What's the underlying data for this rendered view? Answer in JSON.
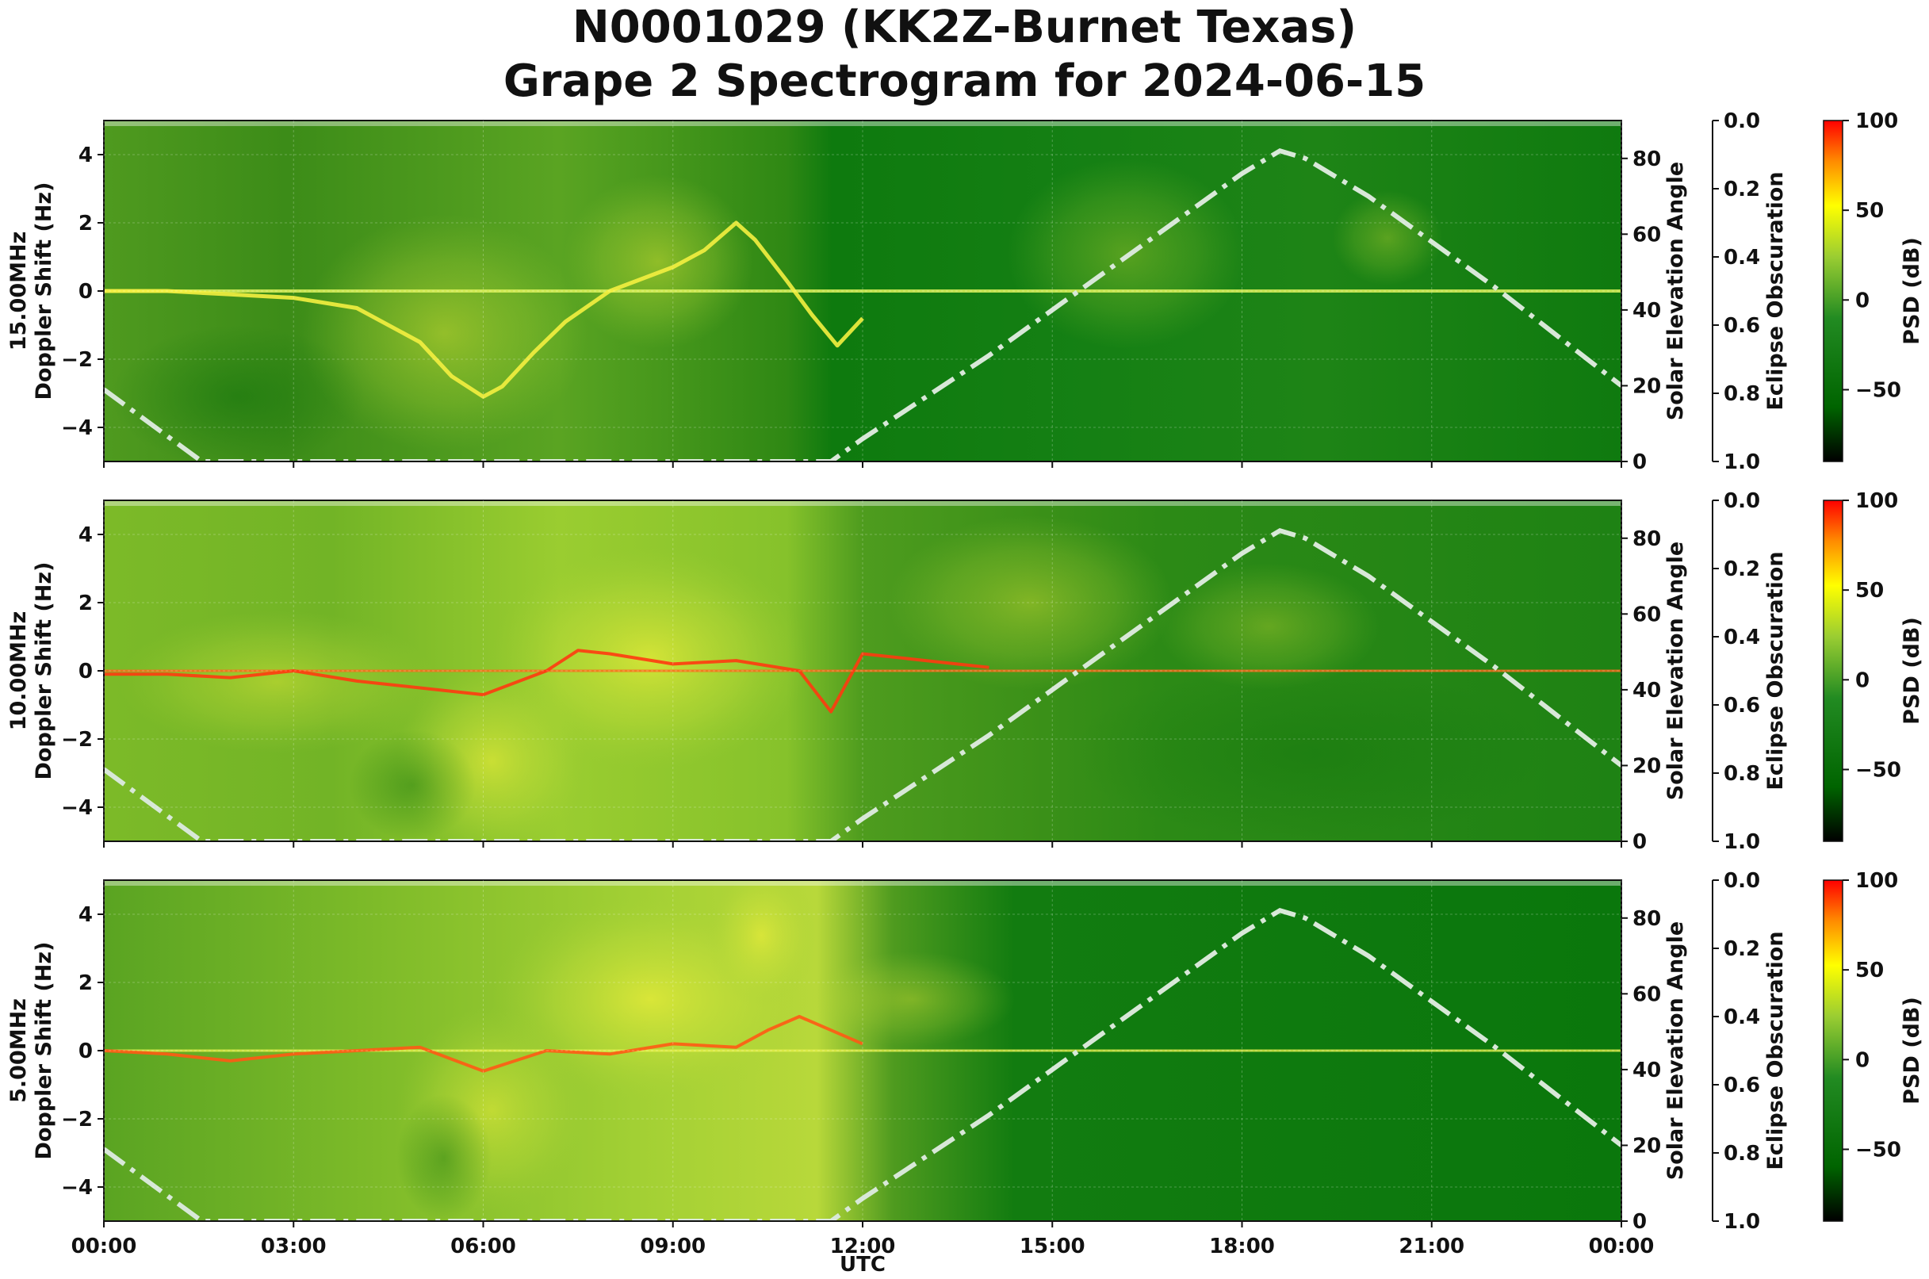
{
  "chart_data": {
    "type": "heatmap",
    "title_lines": [
      "N0001029 (KK2Z-Burnet Texas)",
      "Grape 2 Spectrogram for 2024-06-15"
    ],
    "xlabel": "UTC",
    "x_ticks": [
      "00:00",
      "03:00",
      "06:00",
      "09:00",
      "12:00",
      "15:00",
      "18:00",
      "21:00",
      "00:00"
    ],
    "y_ticks": [
      "4",
      "2",
      "0",
      "−2",
      "−4"
    ],
    "ylim": [
      -5,
      5
    ],
    "right_axis": {
      "label": "Solar Elevation Angle",
      "ticks": [
        "80",
        "60",
        "40",
        "20",
        "0"
      ],
      "range": [
        0,
        90
      ]
    },
    "eclipse_axis": {
      "label": "Eclipse Obscuration",
      "ticks": [
        "0.0",
        "0.2",
        "0.4",
        "0.6",
        "0.8",
        "1.0"
      ],
      "range": [
        0,
        1
      ]
    },
    "colorbar": {
      "label": "PSD (dB)",
      "ticks": [
        "100",
        "50",
        "0",
        "−50"
      ],
      "range": [
        -90,
        100
      ],
      "colors": [
        "#000000",
        "#006400",
        "#228b22",
        "#9acd32",
        "#ffff00",
        "#ff8c00",
        "#ff0000"
      ]
    },
    "solar_elevation": {
      "hours": [
        0,
        1.55,
        11.5,
        12,
        13,
        14,
        15,
        16,
        17,
        18,
        18.6,
        19,
        20,
        21,
        22,
        23,
        24
      ],
      "degrees": [
        19,
        0,
        0,
        6,
        17,
        28,
        40,
        52,
        64,
        76,
        82,
        80,
        70,
        58,
        46,
        33,
        20
      ],
      "style": "dash-dot",
      "color": "#d8e8d8"
    },
    "panels": [
      {
        "ylabel_line1": "15.00MHz",
        "ylabel_line2": "Doppler Shift (Hz)",
        "trace_hours": [
          0,
          1,
          2,
          3,
          4,
          5,
          5.5,
          6,
          6.3,
          6.8,
          7.3,
          8,
          9,
          9.5,
          10,
          10.3,
          10.8,
          11.2,
          11.6,
          12
        ],
        "trace_hz": [
          0,
          0,
          -0.1,
          -0.2,
          -0.5,
          -1.5,
          -2.5,
          -3.1,
          -2.8,
          -1.8,
          -0.9,
          0,
          0.7,
          1.2,
          2.0,
          1.5,
          0.3,
          -0.7,
          -1.6,
          -0.8
        ]
      },
      {
        "ylabel_line1": "10.00MHz",
        "ylabel_line2": "Doppler Shift (Hz)",
        "trace_hours": [
          0,
          1,
          2,
          3,
          4,
          5,
          6,
          7,
          7.5,
          8,
          9,
          10,
          11,
          11.5,
          12,
          13,
          14
        ],
        "trace_hz": [
          -0.1,
          -0.1,
          -0.2,
          0,
          -0.3,
          -0.5,
          -0.7,
          0,
          0.6,
          0.5,
          0.2,
          0.3,
          0,
          -1.2,
          0.5,
          0.3,
          0.1
        ]
      },
      {
        "ylabel_line1": "5.00MHz",
        "ylabel_line2": "Doppler Shift (Hz)",
        "trace_hours": [
          0,
          1,
          2,
          3,
          4,
          5,
          6,
          7,
          8,
          9,
          10,
          10.5,
          11,
          11.5,
          12
        ],
        "trace_hz": [
          0,
          -0.1,
          -0.3,
          -0.1,
          0,
          0.1,
          -0.6,
          0,
          -0.1,
          0.2,
          0.1,
          0.6,
          1.0,
          0.6,
          0.2
        ]
      }
    ]
  }
}
